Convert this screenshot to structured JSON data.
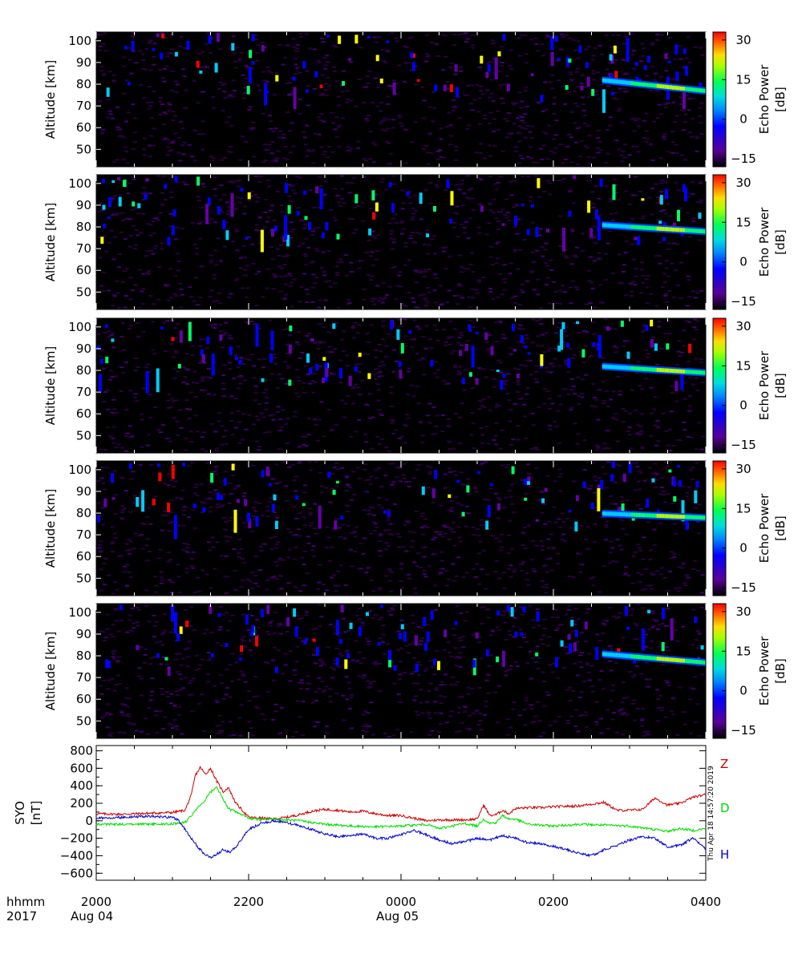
{
  "radar_panels": [
    {
      "ylabel": "Altitude [km]",
      "yticks": [
        50,
        60,
        70,
        80,
        90,
        100
      ],
      "layer_alt_start": 82,
      "layer_alt_end": 77,
      "cbar_label": "Echo Power [dB]",
      "cbar_ticks": [
        "30",
        "15",
        "0",
        "−15"
      ]
    },
    {
      "ylabel": "Altitude [km]",
      "yticks": [
        50,
        60,
        70,
        80,
        90,
        100
      ],
      "layer_alt_start": 81,
      "layer_alt_end": 78,
      "cbar_label": "Echo Power [dB]",
      "cbar_ticks": [
        "30",
        "15",
        "0",
        "−15"
      ]
    },
    {
      "ylabel": "Altitude [km]",
      "yticks": [
        50,
        60,
        70,
        80,
        90,
        100
      ],
      "layer_alt_start": 82,
      "layer_alt_end": 79,
      "cbar_label": "Echo Power [dB]",
      "cbar_ticks": [
        "30",
        "15",
        "0",
        "−15"
      ]
    },
    {
      "ylabel": "Altitude [km]",
      "yticks": [
        50,
        60,
        70,
        80,
        90,
        100
      ],
      "layer_alt_start": 80,
      "layer_alt_end": 78,
      "cbar_label": "Echo Power [dB]",
      "cbar_ticks": [
        "30",
        "15",
        "0",
        "−15"
      ]
    },
    {
      "ylabel": "Altitude [km]",
      "yticks": [
        50,
        60,
        70,
        80,
        90,
        100
      ],
      "layer_alt_start": 81,
      "layer_alt_end": 77,
      "cbar_label": "Echo Power [dB]",
      "cbar_ticks": [
        "30",
        "15",
        "0",
        "−15"
      ]
    }
  ],
  "colors": {
    "Z": "#cc0000",
    "D": "#00dd00",
    "H": "#0000cc",
    "colormap": [
      "#000000",
      "#6600aa",
      "#0000ff",
      "#00ccff",
      "#00ff66",
      "#ffff00",
      "#ff8800",
      "#ff0000"
    ]
  },
  "chart_data": {
    "type": "line",
    "ylabel": "SYO [nT]",
    "yticks": [
      "800",
      "600",
      "400",
      "200",
      "0",
      "−200",
      "−400",
      "−600"
    ],
    "ylim": [
      -680,
      860
    ],
    "xlim": [
      0,
      480
    ],
    "x_units": "minutes after 2000 UT, 2017 Aug 04",
    "x_tick_labels": [
      "2000",
      "2200",
      "0000",
      "0200",
      "0400"
    ],
    "x_tick_values": [
      0,
      120,
      240,
      360,
      480
    ],
    "date_labels": {
      "row_label_top": "hhmm",
      "row_label_bottom": "2017",
      "start": "Aug 04",
      "midnight": "Aug 05"
    },
    "series": [
      {
        "name": "Z",
        "x": [
          0,
          20,
          40,
          60,
          70,
          75,
          78,
          82,
          86,
          90,
          95,
          100,
          104,
          110,
          120,
          130,
          140,
          150,
          160,
          170,
          180,
          190,
          200,
          210,
          220,
          230,
          240,
          250,
          260,
          270,
          280,
          290,
          300,
          305,
          310,
          315,
          320,
          325,
          330,
          340,
          350,
          360,
          380,
          400,
          410,
          420,
          430,
          440,
          450,
          460,
          470,
          480
        ],
        "y": [
          80,
          75,
          85,
          95,
          120,
          300,
          520,
          610,
          530,
          600,
          450,
          330,
          380,
          200,
          40,
          30,
          20,
          40,
          70,
          110,
          130,
          120,
          100,
          110,
          80,
          60,
          60,
          30,
          0,
          10,
          10,
          10,
          20,
          180,
          60,
          70,
          120,
          80,
          140,
          150,
          150,
          160,
          170,
          210,
          120,
          120,
          130,
          260,
          180,
          200,
          270,
          300
        ]
      },
      {
        "name": "D",
        "x": [
          0,
          20,
          40,
          60,
          70,
          75,
          80,
          85,
          90,
          95,
          100,
          104,
          110,
          120,
          130,
          140,
          150,
          160,
          170,
          180,
          200,
          220,
          240,
          250,
          260,
          270,
          280,
          290,
          300,
          305,
          310,
          315,
          320,
          325,
          330,
          340,
          350,
          360,
          380,
          400,
          420,
          440,
          450,
          460,
          470,
          480
        ],
        "y": [
          -40,
          -40,
          -40,
          -35,
          -20,
          60,
          150,
          220,
          330,
          380,
          250,
          140,
          100,
          30,
          10,
          20,
          10,
          0,
          -20,
          -40,
          -60,
          -70,
          -60,
          -50,
          -40,
          -90,
          -60,
          -30,
          -60,
          20,
          -30,
          -20,
          60,
          20,
          20,
          -40,
          -50,
          -60,
          -40,
          -50,
          -60,
          -100,
          -120,
          -90,
          -110,
          -90
        ]
      },
      {
        "name": "H",
        "x": [
          0,
          20,
          40,
          60,
          65,
          70,
          75,
          80,
          85,
          90,
          95,
          100,
          105,
          110,
          120,
          130,
          140,
          150,
          160,
          170,
          180,
          190,
          200,
          210,
          220,
          230,
          240,
          250,
          260,
          270,
          280,
          290,
          300,
          310,
          320,
          330,
          340,
          350,
          360,
          370,
          380,
          390,
          400,
          410,
          420,
          430,
          440,
          450,
          460,
          470,
          480
        ],
        "y": [
          30,
          40,
          50,
          40,
          0,
          -100,
          -200,
          -300,
          -380,
          -420,
          -380,
          -330,
          -360,
          -300,
          -100,
          -30,
          0,
          -20,
          -60,
          -100,
          -150,
          -180,
          -170,
          -150,
          -200,
          -200,
          -160,
          -110,
          -160,
          -220,
          -260,
          -240,
          -200,
          -220,
          -170,
          -200,
          -250,
          -260,
          -290,
          -330,
          -370,
          -400,
          -330,
          -280,
          -220,
          -180,
          -200,
          -300,
          -280,
          -200,
          -320
        ]
      }
    ]
  },
  "timestamp": "Thu Apr 18 14:57:20 2019"
}
